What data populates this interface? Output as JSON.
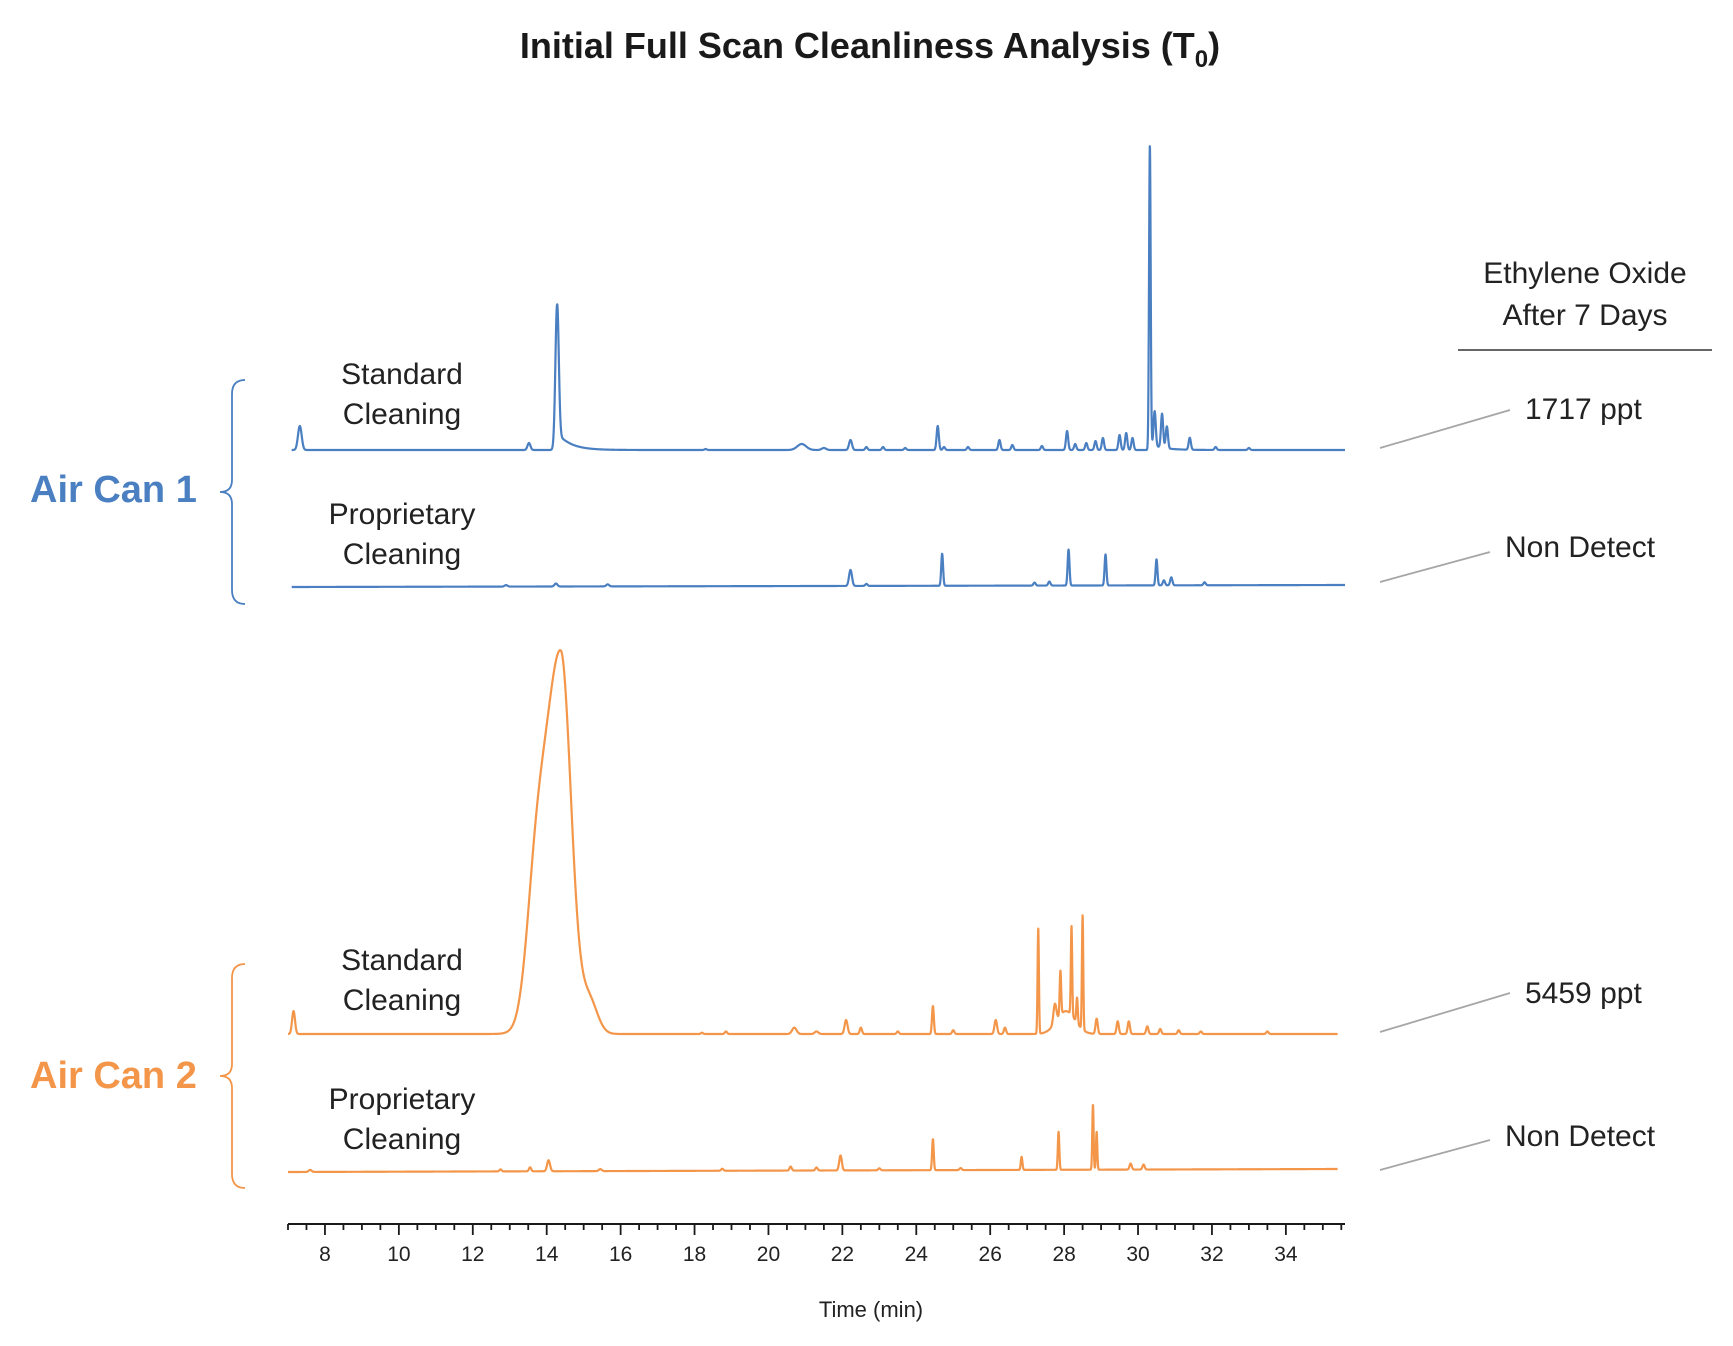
{
  "chart_data": {
    "type": "line",
    "title": "Initial Full Scan Cleanliness Analysis (T",
    "title_subscript": "0",
    "title_close": ")",
    "xlabel": "Time (min)",
    "ylabel": "",
    "xlim": [
      7,
      35.6
    ],
    "x_ticks": [
      8,
      10,
      12,
      14,
      16,
      18,
      20,
      22,
      24,
      26,
      28,
      30,
      32,
      34
    ],
    "grid": false,
    "legend": "none",
    "header": [
      "Ethylene Oxide",
      "After 7 Days"
    ],
    "colors": {
      "air_can_1": "#4a7fc1",
      "air_can_2": "#f3964a",
      "leader": "#a6a6a6",
      "axis": "#1a1a1a"
    },
    "groups": [
      {
        "name": "Air Can 1",
        "color": "#4a7fc1",
        "series": [
          {
            "label": [
              "Standard",
              "Cleaning"
            ],
            "eo_result": "1717 ppt",
            "x_range": [
              7.1,
              35.6
            ],
            "baseline": 0,
            "peaks": [
              {
                "x": 7.32,
                "h": 24,
                "w": 0.05
              },
              {
                "x": 13.52,
                "h": 7,
                "w": 0.04
              },
              {
                "x": 14.28,
                "h": 145,
                "w": 0.045,
                "tail": 18
              },
              {
                "x": 18.3,
                "h": 1,
                "w": 0.03
              },
              {
                "x": 20.9,
                "h": 6,
                "w": 0.12
              },
              {
                "x": 21.5,
                "h": 2,
                "w": 0.06
              },
              {
                "x": 22.22,
                "h": 10,
                "w": 0.04
              },
              {
                "x": 22.65,
                "h": 3,
                "w": 0.03
              },
              {
                "x": 23.1,
                "h": 3,
                "w": 0.03
              },
              {
                "x": 23.7,
                "h": 2,
                "w": 0.03
              },
              {
                "x": 24.58,
                "h": 24,
                "w": 0.03
              },
              {
                "x": 24.75,
                "h": 3,
                "w": 0.03
              },
              {
                "x": 25.4,
                "h": 3,
                "w": 0.03
              },
              {
                "x": 26.25,
                "h": 10,
                "w": 0.03
              },
              {
                "x": 26.6,
                "h": 5,
                "w": 0.03
              },
              {
                "x": 27.4,
                "h": 4,
                "w": 0.03
              },
              {
                "x": 28.08,
                "h": 19,
                "w": 0.03
              },
              {
                "x": 28.3,
                "h": 6,
                "w": 0.03
              },
              {
                "x": 28.6,
                "h": 7,
                "w": 0.03
              },
              {
                "x": 28.85,
                "h": 9,
                "w": 0.03
              },
              {
                "x": 29.05,
                "h": 12,
                "w": 0.03
              },
              {
                "x": 29.5,
                "h": 15,
                "w": 0.03
              },
              {
                "x": 29.68,
                "h": 17,
                "w": 0.03
              },
              {
                "x": 29.85,
                "h": 12,
                "w": 0.03
              },
              {
                "x": 30.32,
                "h": 305,
                "w": 0.022,
                "tail": 6
              },
              {
                "x": 30.45,
                "h": 35,
                "w": 0.03
              },
              {
                "x": 30.65,
                "h": 34,
                "w": 0.03
              },
              {
                "x": 30.78,
                "h": 22,
                "w": 0.03
              },
              {
                "x": 31.4,
                "h": 12,
                "w": 0.03
              },
              {
                "x": 32.1,
                "h": 3,
                "w": 0.03
              },
              {
                "x": 33.0,
                "h": 2,
                "w": 0.03
              }
            ]
          },
          {
            "label": [
              "Proprietary",
              "Cleaning"
            ],
            "eo_result": "Non Detect",
            "x_range": [
              7.1,
              35.6
            ],
            "baseline": 0,
            "drift": 2,
            "peaks": [
              {
                "x": 12.9,
                "h": 1.5,
                "w": 0.04
              },
              {
                "x": 14.25,
                "h": 3,
                "w": 0.04
              },
              {
                "x": 15.65,
                "h": 2,
                "w": 0.04
              },
              {
                "x": 22.22,
                "h": 16,
                "w": 0.04
              },
              {
                "x": 22.65,
                "h": 2,
                "w": 0.03
              },
              {
                "x": 24.7,
                "h": 32,
                "w": 0.025
              },
              {
                "x": 27.2,
                "h": 3,
                "w": 0.03
              },
              {
                "x": 27.6,
                "h": 4,
                "w": 0.03
              },
              {
                "x": 28.12,
                "h": 36,
                "w": 0.025
              },
              {
                "x": 29.12,
                "h": 31,
                "w": 0.025
              },
              {
                "x": 30.5,
                "h": 26,
                "w": 0.025
              },
              {
                "x": 30.7,
                "h": 5,
                "w": 0.03
              },
              {
                "x": 30.9,
                "h": 8,
                "w": 0.03
              },
              {
                "x": 31.8,
                "h": 3,
                "w": 0.03
              }
            ]
          }
        ]
      },
      {
        "name": "Air Can 2",
        "color": "#f3964a",
        "series": [
          {
            "label": [
              "Standard",
              "Cleaning"
            ],
            "eo_result": "5459 ppt",
            "x_range": [
              7.0,
              35.4
            ],
            "baseline": 0,
            "peaks": [
              {
                "x": 7.15,
                "h": 18,
                "w": 0.04
              },
              {
                "x": 14.38,
                "h": 300,
                "w": 0.28,
                "front": 0.55
              },
              {
                "x": 13.7,
                "h": 80,
                "w": 0.25
              },
              {
                "x": 15.15,
                "h": 26,
                "w": 0.22
              },
              {
                "x": 18.2,
                "h": 1,
                "w": 0.03
              },
              {
                "x": 18.85,
                "h": 2,
                "w": 0.03
              },
              {
                "x": 20.7,
                "h": 5,
                "w": 0.06
              },
              {
                "x": 21.3,
                "h": 2,
                "w": 0.05
              },
              {
                "x": 22.1,
                "h": 11,
                "w": 0.04
              },
              {
                "x": 22.5,
                "h": 5,
                "w": 0.03
              },
              {
                "x": 23.5,
                "h": 2,
                "w": 0.03
              },
              {
                "x": 24.45,
                "h": 22,
                "w": 0.025
              },
              {
                "x": 25.0,
                "h": 3,
                "w": 0.03
              },
              {
                "x": 26.15,
                "h": 11,
                "w": 0.035
              },
              {
                "x": 26.4,
                "h": 5,
                "w": 0.03
              },
              {
                "x": 27.3,
                "h": 83,
                "w": 0.018
              },
              {
                "x": 27.75,
                "h": 15,
                "w": 0.04
              },
              {
                "x": 27.9,
                "h": 35,
                "w": 0.02
              },
              {
                "x": 28.05,
                "h": 18,
                "w": 0.25
              },
              {
                "x": 28.2,
                "h": 70,
                "w": 0.018
              },
              {
                "x": 28.35,
                "h": 20,
                "w": 0.02
              },
              {
                "x": 28.5,
                "h": 90,
                "w": 0.018
              },
              {
                "x": 28.88,
                "h": 12,
                "w": 0.03
              },
              {
                "x": 29.45,
                "h": 10,
                "w": 0.03
              },
              {
                "x": 29.75,
                "h": 10,
                "w": 0.03
              },
              {
                "x": 30.25,
                "h": 6,
                "w": 0.03
              },
              {
                "x": 30.6,
                "h": 4,
                "w": 0.03
              },
              {
                "x": 31.1,
                "h": 3,
                "w": 0.03
              },
              {
                "x": 31.7,
                "h": 2,
                "w": 0.03
              },
              {
                "x": 33.5,
                "h": 2,
                "w": 0.03
              }
            ]
          },
          {
            "label": [
              "Proprietary",
              "Cleaning"
            ],
            "eo_result": "Non Detect",
            "x_range": [
              7.0,
              35.4
            ],
            "baseline": 0,
            "drift": 3,
            "peaks": [
              {
                "x": 7.6,
                "h": 2,
                "w": 0.04
              },
              {
                "x": 12.75,
                "h": 2,
                "w": 0.03
              },
              {
                "x": 13.55,
                "h": 4,
                "w": 0.03
              },
              {
                "x": 14.05,
                "h": 11,
                "w": 0.04
              },
              {
                "x": 15.45,
                "h": 2,
                "w": 0.04
              },
              {
                "x": 18.75,
                "h": 2,
                "w": 0.03
              },
              {
                "x": 20.6,
                "h": 4,
                "w": 0.03
              },
              {
                "x": 21.3,
                "h": 3,
                "w": 0.03
              },
              {
                "x": 21.95,
                "h": 15,
                "w": 0.035
              },
              {
                "x": 23.0,
                "h": 2,
                "w": 0.03
              },
              {
                "x": 24.45,
                "h": 31,
                "w": 0.022
              },
              {
                "x": 25.2,
                "h": 2,
                "w": 0.03
              },
              {
                "x": 26.85,
                "h": 13,
                "w": 0.022
              },
              {
                "x": 27.85,
                "h": 38,
                "w": 0.02
              },
              {
                "x": 28.78,
                "h": 65,
                "w": 0.018
              },
              {
                "x": 28.88,
                "h": 38,
                "w": 0.018
              },
              {
                "x": 29.8,
                "h": 6,
                "w": 0.03
              },
              {
                "x": 30.15,
                "h": 5,
                "w": 0.03
              }
            ]
          }
        ]
      }
    ]
  }
}
